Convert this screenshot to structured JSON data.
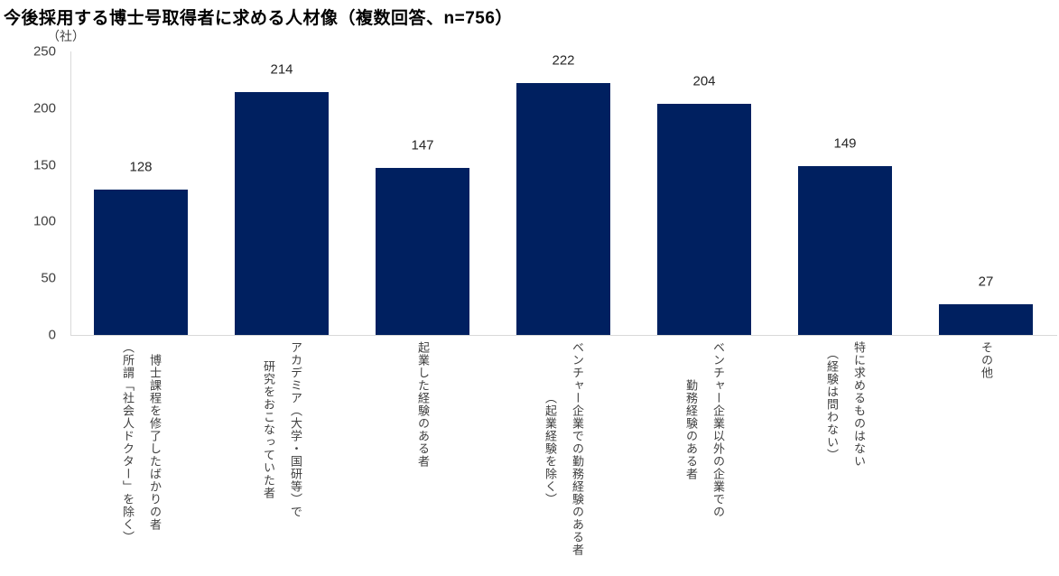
{
  "chart_data": {
    "type": "bar",
    "title": "今後採用する博士号取得者に求める人材像（複数回答、n=756）",
    "unit_label": "（社）",
    "categories": [
      "博士課程を修了したばかりの者\n（所謂「社会人ドクター」を除く）",
      "アカデミア（大学・国研等）で\n研究をおこなっていた者",
      "起業した経験のある者",
      "ベンチャー企業での勤務経験のある者\n（起業経験を除く）",
      "ベンチャー企業以外の企業での\n勤務経験のある者",
      "特に求めるものはない\n（経験は問わない）",
      "その他"
    ],
    "values": [
      128,
      214,
      147,
      222,
      204,
      149,
      27
    ],
    "ylim": [
      0,
      250
    ],
    "yticks": [
      0,
      50,
      100,
      150,
      200,
      250
    ],
    "xlabel": "",
    "ylabel": "",
    "grid": false,
    "legend": false,
    "bar_color": "#002060",
    "axis_line_color": "#d9d9d9",
    "tick_label_color": "#404040",
    "value_label_color": "#262626",
    "title_color": "#000000"
  }
}
